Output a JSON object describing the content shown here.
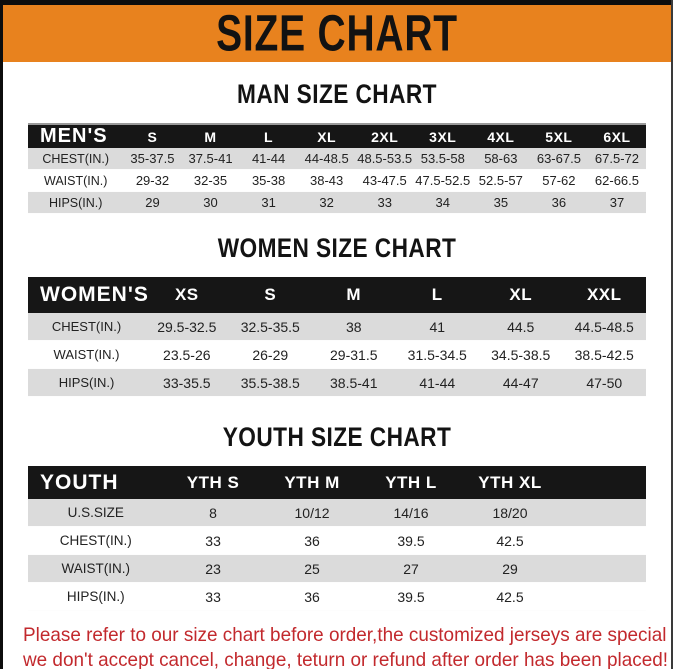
{
  "page": {
    "title": "SIZE CHART",
    "accent_color": "#E8821E",
    "footer_color": "#C2292D"
  },
  "sections": [
    {
      "title": "MAN SIZE CHART",
      "table": {
        "header": [
          "MEN'S",
          "S",
          "M",
          "L",
          "XL",
          "2XL",
          "3XL",
          "4XL",
          "5XL",
          "6XL"
        ],
        "rows": [
          [
            "CHEST(IN.)",
            "35-37.5",
            "37.5-41",
            "41-44",
            "44-48.5",
            "48.5-53.5",
            "53.5-58",
            "58-63",
            "63-67.5",
            "67.5-72"
          ],
          [
            "WAIST(IN.)",
            "29-32",
            "32-35",
            "35-38",
            "38-43",
            "43-47.5",
            "47.5-52.5",
            "52.5-57",
            "57-62",
            "62-66.5"
          ],
          [
            "HIPS(IN.)",
            "29",
            "30",
            "31",
            "32",
            "33",
            "34",
            "35",
            "36",
            "37"
          ]
        ]
      }
    },
    {
      "title": "WOMEN SIZE CHART",
      "table": {
        "header": [
          "WOMEN'S",
          "XS",
          "S",
          "M",
          "L",
          "XL",
          "XXL"
        ],
        "rows": [
          [
            "CHEST(IN.)",
            "29.5-32.5",
            "32.5-35.5",
            "38",
            "41",
            "44.5",
            "44.5-48.5"
          ],
          [
            "WAIST(IN.)",
            "23.5-26",
            "26-29",
            "29-31.5",
            "31.5-34.5",
            "34.5-38.5",
            "38.5-42.5"
          ],
          [
            "HIPS(IN.)",
            "33-35.5",
            "35.5-38.5",
            "38.5-41",
            "41-44",
            "44-47",
            "47-50"
          ]
        ]
      }
    },
    {
      "title": "YOUTH SIZE CHART",
      "table": {
        "header": [
          "YOUTH",
          "YTH S",
          "YTH M",
          "YTH L",
          "YTH XL"
        ],
        "rows": [
          [
            "U.S.SIZE",
            "8",
            "10/12",
            "14/16",
            "18/20"
          ],
          [
            "CHEST(IN.)",
            "33",
            "36",
            "39.5",
            "42.5"
          ],
          [
            "WAIST(IN.)",
            "23",
            "25",
            "27",
            "29"
          ],
          [
            "HIPS(IN.)",
            "33",
            "36",
            "39.5",
            "42.5"
          ]
        ]
      }
    }
  ],
  "footer": {
    "line1": "Please refer to our size chart before order,the customized jerseys are special products,",
    "line2": "we don't accept cancel, change, teturn or refund after order has been placed!"
  }
}
